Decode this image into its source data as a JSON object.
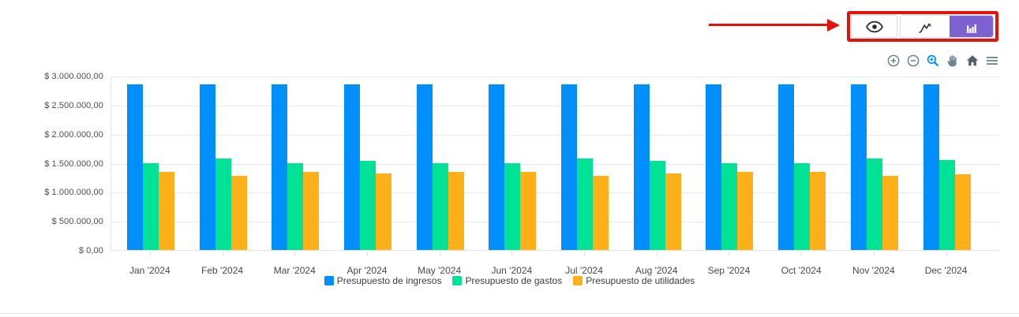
{
  "colors": {
    "annotation_red": "#e3130b",
    "active_toggle_purple": "#7b61d1",
    "toolbar_icon_gray": "#6e8192",
    "toolbar_icon_active_blue": "#008ffb",
    "grid_gray": "#e9e9e9",
    "label_gray": "#373d3f"
  },
  "view_toggle": {
    "buttons": [
      {
        "name": "eye",
        "icon": "eye-icon",
        "active": false
      },
      {
        "name": "line-chart",
        "icon": "line-chart-icon",
        "active": false
      },
      {
        "name": "bar-chart",
        "icon": "bar-chart-icon",
        "active": true
      }
    ]
  },
  "chart_toolbar": {
    "icons": [
      "zoom-in",
      "zoom-out",
      "selection-zoom",
      "pan",
      "home",
      "menu"
    ],
    "active_icon": "selection-zoom"
  },
  "chart_data": {
    "type": "bar",
    "title": "",
    "xlabel": "",
    "ylabel": "",
    "categories": [
      "Jan '2024",
      "Feb '2024",
      "Mar '2024",
      "Apr '2024",
      "May '2024",
      "Jun '2024",
      "Jul '2024",
      "Aug '2024",
      "Sep '2024",
      "Oct '2024",
      "Nov '2024",
      "Dec '2024"
    ],
    "series": [
      {
        "name": "Presupuesto de ingresos",
        "color": "#008FFB",
        "values": [
          2850000,
          2850000,
          2850000,
          2850000,
          2850000,
          2850000,
          2850000,
          2850000,
          2850000,
          2850000,
          2850000,
          2850000
        ]
      },
      {
        "name": "Presupuesto de gastos",
        "color": "#00E396",
        "values": [
          1500000,
          1580000,
          1500000,
          1530000,
          1500000,
          1500000,
          1580000,
          1530000,
          1500000,
          1500000,
          1580000,
          1550000
        ]
      },
      {
        "name": "Presupuesto de utilidades",
        "color": "#FEB019",
        "values": [
          1350000,
          1270000,
          1350000,
          1320000,
          1350000,
          1350000,
          1270000,
          1320000,
          1350000,
          1350000,
          1270000,
          1300000
        ]
      }
    ],
    "ylim": [
      0,
      3000000
    ],
    "ytick_step": 500000,
    "ytick_labels": [
      "$ 3.000.000,00",
      "$ 2.500.000,00",
      "$ 2.000.000,00",
      "$ 1.500.000,00",
      "$ 1.000.000,00",
      "$ 500.000,00",
      "$ 0,00"
    ],
    "grid": true,
    "legend_position": "bottom"
  }
}
